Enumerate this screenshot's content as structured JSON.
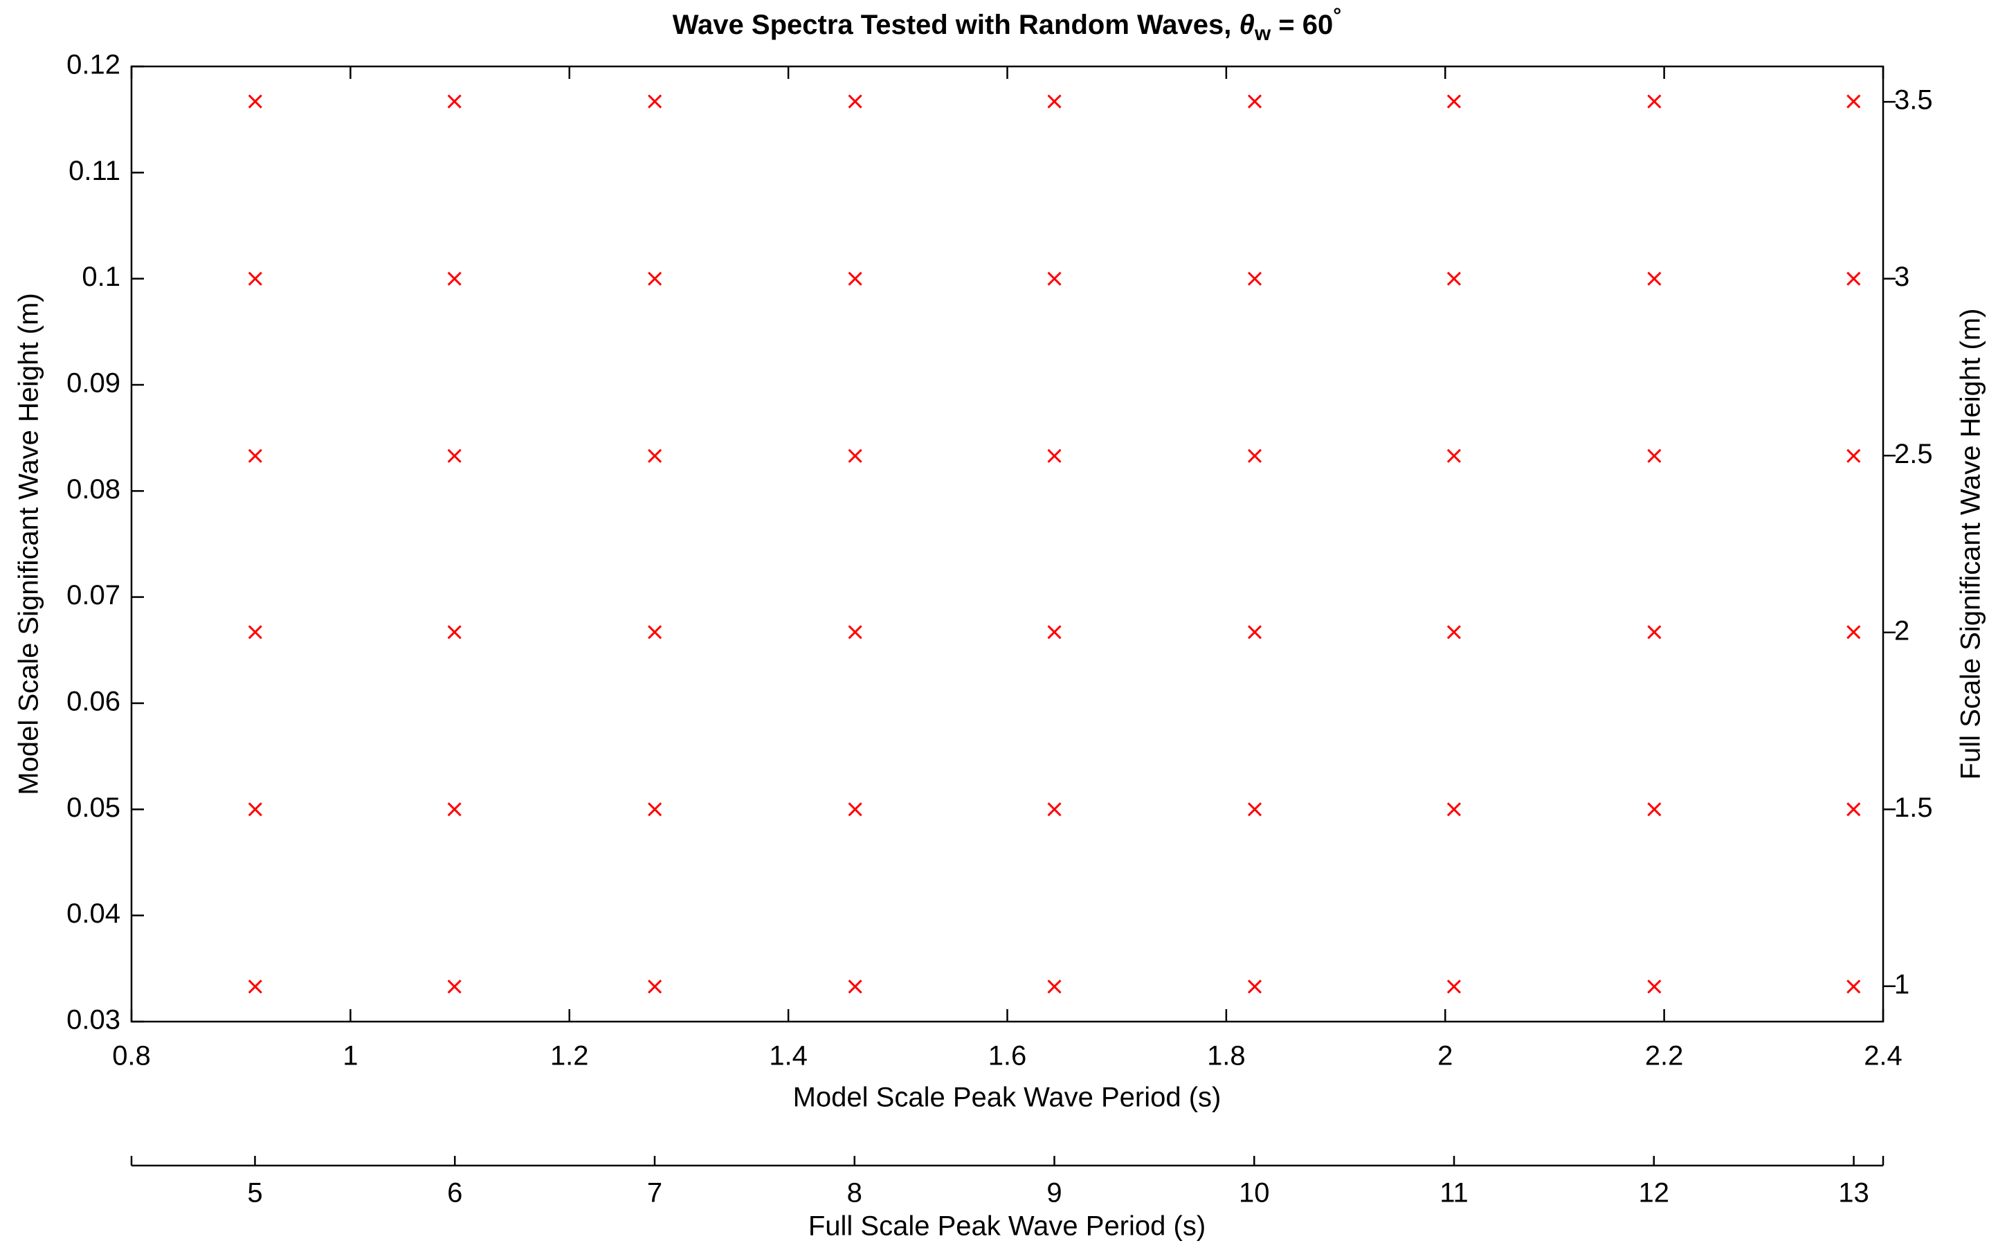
{
  "chart_data": {
    "type": "scatter",
    "title": {
      "text": "Wave Spectra Tested with Random Waves, ",
      "symbol": "θ",
      "subscript": "w",
      "rest": " = 60",
      "superscript": "°"
    },
    "xlabel": "Model Scale Peak Wave Period (s)",
    "ylabel": "Model Scale Significant Wave Height (m)",
    "x2label": "Full Scale Peak Wave Period (s)",
    "y2label": "Full Scale Significant Wave Height (m)",
    "xlim": [
      0.8,
      2.4
    ],
    "xticks": [
      0.8,
      1,
      1.2,
      1.4,
      1.6,
      1.8,
      2,
      2.2,
      2.4
    ],
    "ylim": [
      0.03,
      0.12
    ],
    "yticks": [
      0.03,
      0.04,
      0.05,
      0.06,
      0.07,
      0.08,
      0.09,
      0.1,
      0.11,
      0.12
    ],
    "x2lim": [
      4.382,
      13.147
    ],
    "x2ticks": [
      5,
      6,
      7,
      8,
      9,
      10,
      11,
      12,
      13
    ],
    "y2lim": [
      0.9,
      3.6
    ],
    "y2ticks": [
      1,
      1.5,
      2,
      2.5,
      3,
      3.5
    ],
    "marker": "x",
    "x": [
      0.913,
      1.095,
      1.278,
      1.461,
      1.643,
      1.826,
      2.008,
      2.191,
      2.373,
      0.913,
      1.095,
      1.278,
      1.461,
      1.643,
      1.826,
      2.008,
      2.191,
      2.373,
      0.913,
      1.095,
      1.278,
      1.461,
      1.643,
      1.826,
      2.008,
      2.191,
      2.373,
      0.913,
      1.095,
      1.278,
      1.461,
      1.643,
      1.826,
      2.008,
      2.191,
      2.373,
      0.913,
      1.095,
      1.278,
      1.461,
      1.643,
      1.826,
      2.008,
      2.191,
      2.373,
      0.913,
      1.095,
      1.278,
      1.461,
      1.643,
      1.826,
      2.008,
      2.191,
      2.373
    ],
    "series": [
      {
        "color": "#ff0000",
        "values": [
          0.0333,
          0.0333,
          0.0333,
          0.0333,
          0.0333,
          0.0333,
          0.0333,
          0.0333,
          0.0333,
          0.05,
          0.05,
          0.05,
          0.05,
          0.05,
          0.05,
          0.05,
          0.05,
          0.05,
          0.0667,
          0.0667,
          0.0667,
          0.0667,
          0.0667,
          0.0667,
          0.0667,
          0.0667,
          0.0667,
          0.0833,
          0.0833,
          0.0833,
          0.0833,
          0.0833,
          0.0833,
          0.0833,
          0.0833,
          0.0833,
          0.1,
          0.1,
          0.1,
          0.1,
          0.1,
          0.1,
          0.1,
          0.1,
          0.1,
          0.1167,
          0.1167,
          0.1167,
          0.1167,
          0.1167,
          0.1167,
          0.1167,
          0.1167,
          0.1167
        ]
      }
    ]
  }
}
